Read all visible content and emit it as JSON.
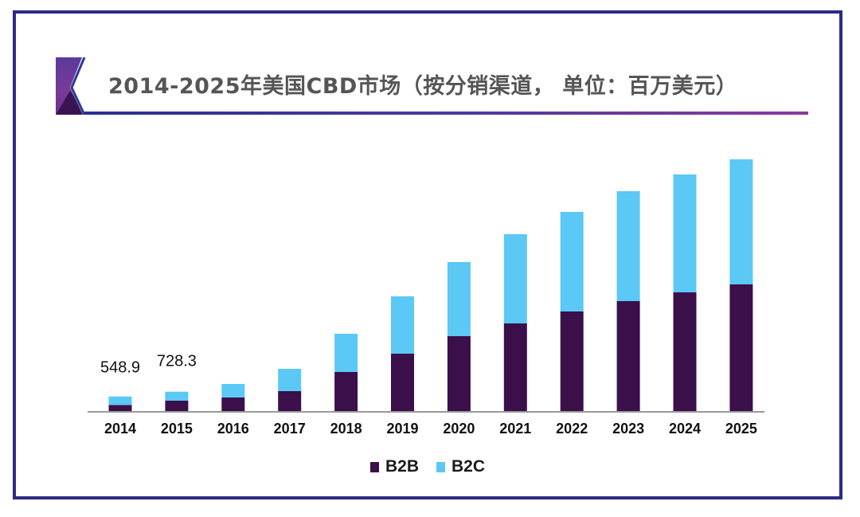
{
  "chart_data": {
    "type": "bar",
    "stacked": true,
    "title": "2014-2025年美国CBD市场（按分销渠道， 单位：百万美元）",
    "xlabel": "",
    "ylabel": "",
    "categories": [
      "2014",
      "2015",
      "2016",
      "2017",
      "2018",
      "2019",
      "2020",
      "2021",
      "2022",
      "2023",
      "2024",
      "2025"
    ],
    "series": [
      {
        "name": "B2B",
        "color": "#3b0f4a",
        "values": [
          230,
          390,
          510,
          750,
          1470,
          2160,
          2820,
          3300,
          3750,
          4140,
          4470,
          4770
        ]
      },
      {
        "name": "B2C",
        "color": "#5bc8f5",
        "values": [
          318.9,
          338.3,
          510,
          840,
          1440,
          2160,
          2790,
          3360,
          3750,
          4140,
          4440,
          4710
        ]
      }
    ],
    "data_labels": [
      {
        "category": "2014",
        "text": "548.9"
      },
      {
        "category": "2015",
        "text": "728.3"
      }
    ],
    "ylim": [
      0,
      10000
    ],
    "grid": false,
    "legend_position": "bottom-center"
  },
  "legend": [
    {
      "label": "B2B",
      "color": "#3b0f4a"
    },
    {
      "label": "B2C",
      "color": "#5bc8f5"
    }
  ],
  "colors": {
    "frame": "#2b2a8a",
    "axis": "#999999",
    "title": "#555555"
  }
}
